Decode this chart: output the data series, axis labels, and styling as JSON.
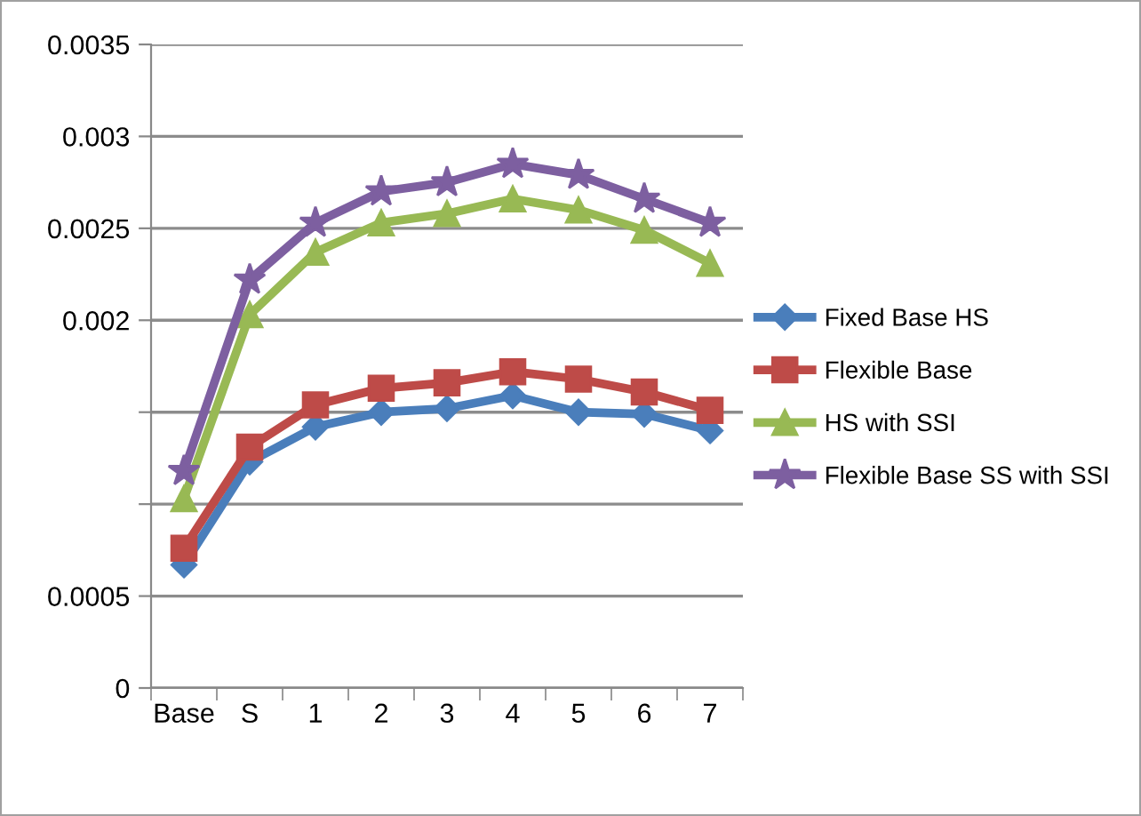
{
  "chart_data": {
    "type": "line",
    "categories": [
      "Base",
      "S",
      "1",
      "2",
      "3",
      "4",
      "5",
      "6",
      "7"
    ],
    "series": [
      {
        "name": "Fixed Base HS",
        "color": "#4a7ebb",
        "marker": "diamond",
        "values": [
          0.00067,
          0.00123,
          0.00142,
          0.0015,
          0.00152,
          0.00159,
          0.0015,
          0.00149,
          0.0014
        ]
      },
      {
        "name": "Flexible Base",
        "color": "#be4b48",
        "marker": "square",
        "values": [
          0.00076,
          0.00131,
          0.00154,
          0.00163,
          0.00166,
          0.00172,
          0.00168,
          0.00161,
          0.00151
        ]
      },
      {
        "name": "HS with SSI",
        "color": "#98b954",
        "marker": "triangle",
        "values": [
          0.00103,
          0.00203,
          0.00237,
          0.00253,
          0.00258,
          0.00266,
          0.0026,
          0.00249,
          0.00231
        ]
      },
      {
        "name": "Flexible Base SS with SSI",
        "color": "#7d5fa0",
        "marker": "star",
        "values": [
          0.00118,
          0.00222,
          0.00253,
          0.0027,
          0.00275,
          0.00285,
          0.00279,
          0.00266,
          0.00253
        ]
      }
    ],
    "ylim": [
      0,
      0.0035
    ],
    "yticks": [
      0,
      0.0005,
      {
        "value": 0.001,
        "label": null
      },
      {
        "value": 0.0015,
        "label": null
      },
      0.002,
      0.0025,
      0.003,
      0.0035
    ],
    "grid": "y",
    "legend": "right",
    "line_style": "solid"
  }
}
